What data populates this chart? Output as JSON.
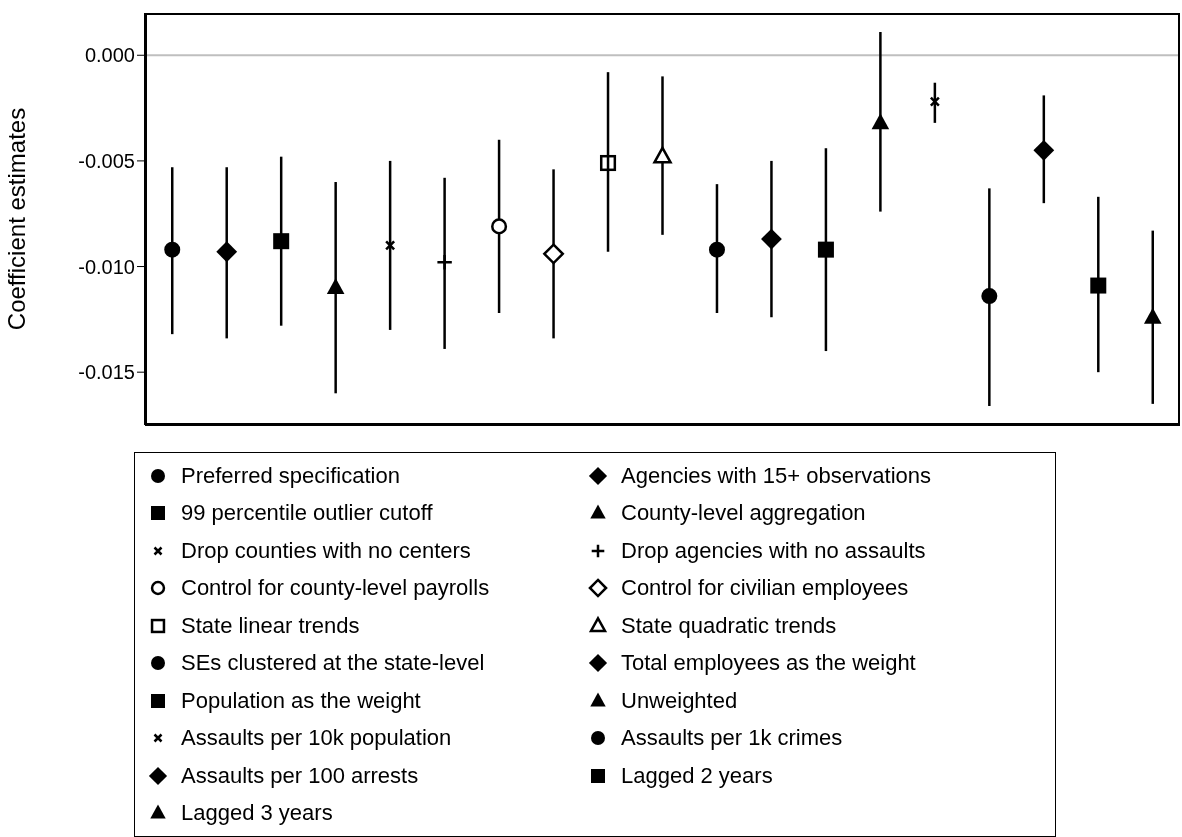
{
  "chart_data": {
    "type": "scatter",
    "ylabel": "Coefficient estimates",
    "categories": [
      null,
      null,
      null,
      null,
      null,
      null,
      null,
      null,
      null,
      null,
      null,
      null,
      null,
      null,
      null,
      null,
      null,
      null,
      null
    ],
    "ylim": [
      -0.0175,
      0.002
    ],
    "yticks": [
      {
        "value": -0.015,
        "label": "-0.015"
      },
      {
        "value": -0.01,
        "label": "-0.010"
      },
      {
        "value": -0.005,
        "label": "-0.005"
      },
      {
        "value": 0,
        "label": "0.000"
      }
    ],
    "tick_labels": "y",
    "grid": false,
    "legend": "bottom",
    "ref_lines": [
      {
        "axis": "y",
        "value": 0,
        "color": "#bfbfbf"
      }
    ],
    "series": [
      {
        "name": "Preferred specification",
        "color": "#000000",
        "marker": "circle",
        "values": [
          -0.0092,
          null,
          null,
          null,
          null,
          null,
          null,
          null,
          null,
          null,
          null,
          null,
          null,
          null,
          null,
          null,
          null,
          null,
          null
        ],
        "errors": [
          [
            -0.0132,
            -0.0053
          ],
          null,
          null,
          null,
          null,
          null,
          null,
          null,
          null,
          null,
          null,
          null,
          null,
          null,
          null,
          null,
          null,
          null,
          null
        ]
      },
      {
        "name": "Agencies with 15+ observations",
        "color": "#000000",
        "marker": "diamond",
        "values": [
          null,
          -0.0093,
          null,
          null,
          null,
          null,
          null,
          null,
          null,
          null,
          null,
          null,
          null,
          null,
          null,
          null,
          null,
          null,
          null
        ],
        "errors": [
          null,
          [
            -0.0134,
            -0.0053
          ],
          null,
          null,
          null,
          null,
          null,
          null,
          null,
          null,
          null,
          null,
          null,
          null,
          null,
          null,
          null,
          null,
          null
        ]
      },
      {
        "name": "99 percentile outlier cutoff",
        "color": "#000000",
        "marker": "square",
        "values": [
          null,
          null,
          -0.0088,
          null,
          null,
          null,
          null,
          null,
          null,
          null,
          null,
          null,
          null,
          null,
          null,
          null,
          null,
          null,
          null
        ],
        "errors": [
          null,
          null,
          [
            -0.0128,
            -0.0048
          ],
          null,
          null,
          null,
          null,
          null,
          null,
          null,
          null,
          null,
          null,
          null,
          null,
          null,
          null,
          null,
          null
        ]
      },
      {
        "name": "County-level aggregation",
        "color": "#000000",
        "marker": "triangle",
        "values": [
          null,
          null,
          null,
          -0.011,
          null,
          null,
          null,
          null,
          null,
          null,
          null,
          null,
          null,
          null,
          null,
          null,
          null,
          null,
          null
        ],
        "errors": [
          null,
          null,
          null,
          [
            -0.016,
            -0.006
          ],
          null,
          null,
          null,
          null,
          null,
          null,
          null,
          null,
          null,
          null,
          null,
          null,
          null,
          null,
          null
        ]
      },
      {
        "name": "Drop counties with no centers",
        "color": "#000000",
        "marker": "x",
        "values": [
          null,
          null,
          null,
          null,
          -0.009,
          null,
          null,
          null,
          null,
          null,
          null,
          null,
          null,
          null,
          null,
          null,
          null,
          null,
          null
        ],
        "errors": [
          null,
          null,
          null,
          null,
          [
            -0.013,
            -0.005
          ],
          null,
          null,
          null,
          null,
          null,
          null,
          null,
          null,
          null,
          null,
          null,
          null,
          null,
          null
        ]
      },
      {
        "name": "Drop agencies with no assaults",
        "color": "#000000",
        "marker": "cross",
        "values": [
          null,
          null,
          null,
          null,
          null,
          -0.0098,
          null,
          null,
          null,
          null,
          null,
          null,
          null,
          null,
          null,
          null,
          null,
          null,
          null
        ],
        "errors": [
          null,
          null,
          null,
          null,
          null,
          [
            -0.0139,
            -0.0058
          ],
          null,
          null,
          null,
          null,
          null,
          null,
          null,
          null,
          null,
          null,
          null,
          null,
          null
        ]
      },
      {
        "name": "Control for county-level payrolls",
        "color": "#000000",
        "marker": "circle-open",
        "values": [
          null,
          null,
          null,
          null,
          null,
          null,
          -0.0081,
          null,
          null,
          null,
          null,
          null,
          null,
          null,
          null,
          null,
          null,
          null,
          null
        ],
        "errors": [
          null,
          null,
          null,
          null,
          null,
          null,
          [
            -0.0122,
            -0.004
          ],
          null,
          null,
          null,
          null,
          null,
          null,
          null,
          null,
          null,
          null,
          null,
          null
        ]
      },
      {
        "name": "Control for civilian employees",
        "color": "#000000",
        "marker": "diamond-open",
        "values": [
          null,
          null,
          null,
          null,
          null,
          null,
          null,
          -0.0094,
          null,
          null,
          null,
          null,
          null,
          null,
          null,
          null,
          null,
          null,
          null
        ],
        "errors": [
          null,
          null,
          null,
          null,
          null,
          null,
          null,
          [
            -0.0134,
            -0.0054
          ],
          null,
          null,
          null,
          null,
          null,
          null,
          null,
          null,
          null,
          null,
          null
        ]
      },
      {
        "name": "State linear trends",
        "color": "#000000",
        "marker": "square-open",
        "values": [
          null,
          null,
          null,
          null,
          null,
          null,
          null,
          null,
          -0.0051,
          null,
          null,
          null,
          null,
          null,
          null,
          null,
          null,
          null,
          null
        ],
        "errors": [
          null,
          null,
          null,
          null,
          null,
          null,
          null,
          null,
          [
            -0.0093,
            -0.0008
          ],
          null,
          null,
          null,
          null,
          null,
          null,
          null,
          null,
          null,
          null
        ]
      },
      {
        "name": "State quadratic trends",
        "color": "#000000",
        "marker": "triangle-open",
        "values": [
          null,
          null,
          null,
          null,
          null,
          null,
          null,
          null,
          null,
          -0.0048,
          null,
          null,
          null,
          null,
          null,
          null,
          null,
          null,
          null
        ],
        "errors": [
          null,
          null,
          null,
          null,
          null,
          null,
          null,
          null,
          null,
          [
            -0.0085,
            -0.001
          ],
          null,
          null,
          null,
          null,
          null,
          null,
          null,
          null,
          null
        ]
      },
      {
        "name": "SEs clustered at the state-level",
        "color": "#000000",
        "marker": "circle",
        "values": [
          null,
          null,
          null,
          null,
          null,
          null,
          null,
          null,
          null,
          null,
          -0.0092,
          null,
          null,
          null,
          null,
          null,
          null,
          null,
          null
        ],
        "errors": [
          null,
          null,
          null,
          null,
          null,
          null,
          null,
          null,
          null,
          null,
          [
            -0.0122,
            -0.0061
          ],
          null,
          null,
          null,
          null,
          null,
          null,
          null,
          null
        ]
      },
      {
        "name": "Total employees as the weight",
        "color": "#000000",
        "marker": "diamond",
        "values": [
          null,
          null,
          null,
          null,
          null,
          null,
          null,
          null,
          null,
          null,
          null,
          -0.0087,
          null,
          null,
          null,
          null,
          null,
          null,
          null
        ],
        "errors": [
          null,
          null,
          null,
          null,
          null,
          null,
          null,
          null,
          null,
          null,
          null,
          [
            -0.0124,
            -0.005
          ],
          null,
          null,
          null,
          null,
          null,
          null,
          null
        ]
      },
      {
        "name": "Population as the weight",
        "color": "#000000",
        "marker": "square",
        "values": [
          null,
          null,
          null,
          null,
          null,
          null,
          null,
          null,
          null,
          null,
          null,
          null,
          -0.0092,
          null,
          null,
          null,
          null,
          null,
          null
        ],
        "errors": [
          null,
          null,
          null,
          null,
          null,
          null,
          null,
          null,
          null,
          null,
          null,
          null,
          [
            -0.014,
            -0.0044
          ],
          null,
          null,
          null,
          null,
          null,
          null
        ]
      },
      {
        "name": "Unweighted",
        "color": "#000000",
        "marker": "triangle",
        "values": [
          null,
          null,
          null,
          null,
          null,
          null,
          null,
          null,
          null,
          null,
          null,
          null,
          null,
          -0.0032,
          null,
          null,
          null,
          null,
          null
        ],
        "errors": [
          null,
          null,
          null,
          null,
          null,
          null,
          null,
          null,
          null,
          null,
          null,
          null,
          null,
          [
            -0.0074,
            0.0011
          ],
          null,
          null,
          null,
          null,
          null
        ]
      },
      {
        "name": "Assaults per 10k population",
        "color": "#000000",
        "marker": "x",
        "values": [
          null,
          null,
          null,
          null,
          null,
          null,
          null,
          null,
          null,
          null,
          null,
          null,
          null,
          null,
          -0.0022,
          null,
          null,
          null,
          null
        ],
        "errors": [
          null,
          null,
          null,
          null,
          null,
          null,
          null,
          null,
          null,
          null,
          null,
          null,
          null,
          null,
          [
            -0.0032,
            -0.0013
          ],
          null,
          null,
          null,
          null
        ]
      },
      {
        "name": "Assaults per 1k crimes",
        "color": "#000000",
        "marker": "circle",
        "values": [
          null,
          null,
          null,
          null,
          null,
          null,
          null,
          null,
          null,
          null,
          null,
          null,
          null,
          null,
          null,
          -0.0114,
          null,
          null,
          null
        ],
        "errors": [
          null,
          null,
          null,
          null,
          null,
          null,
          null,
          null,
          null,
          null,
          null,
          null,
          null,
          null,
          null,
          [
            -0.0166,
            -0.0063
          ],
          null,
          null,
          null
        ]
      },
      {
        "name": "Assaults per 100 arrests",
        "color": "#000000",
        "marker": "diamond",
        "values": [
          null,
          null,
          null,
          null,
          null,
          null,
          null,
          null,
          null,
          null,
          null,
          null,
          null,
          null,
          null,
          null,
          -0.0045,
          null,
          null
        ],
        "errors": [
          null,
          null,
          null,
          null,
          null,
          null,
          null,
          null,
          null,
          null,
          null,
          null,
          null,
          null,
          null,
          null,
          [
            -0.007,
            -0.0019
          ],
          null,
          null
        ]
      },
      {
        "name": "Lagged 2 years",
        "color": "#000000",
        "marker": "square",
        "values": [
          null,
          null,
          null,
          null,
          null,
          null,
          null,
          null,
          null,
          null,
          null,
          null,
          null,
          null,
          null,
          null,
          null,
          -0.0109,
          null
        ],
        "errors": [
          null,
          null,
          null,
          null,
          null,
          null,
          null,
          null,
          null,
          null,
          null,
          null,
          null,
          null,
          null,
          null,
          null,
          [
            -0.015,
            -0.0067
          ],
          null
        ]
      },
      {
        "name": "Lagged 3 years",
        "color": "#000000",
        "marker": "triangle",
        "values": [
          null,
          null,
          null,
          null,
          null,
          null,
          null,
          null,
          null,
          null,
          null,
          null,
          null,
          null,
          null,
          null,
          null,
          null,
          -0.0124
        ],
        "errors": [
          null,
          null,
          null,
          null,
          null,
          null,
          null,
          null,
          null,
          null,
          null,
          null,
          null,
          null,
          null,
          null,
          null,
          null,
          [
            -0.0165,
            -0.0083
          ]
        ]
      }
    ]
  }
}
